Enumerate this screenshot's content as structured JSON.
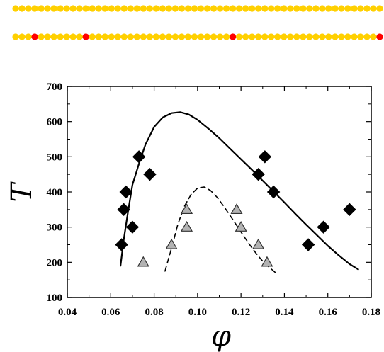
{
  "colors": {
    "bead": "#ffd000",
    "bead_defect": "#ff0000",
    "line": "#000000",
    "diamond": "#000000",
    "triangle_fill": "#b3b3b3",
    "triangle_stroke": "#333333"
  },
  "chain_strips": [
    {
      "beads": 58,
      "defects": []
    },
    {
      "beads": 58,
      "defects": [
        3,
        11,
        34,
        57
      ]
    }
  ],
  "chart_data": {
    "type": "scatter",
    "xlabel": "φ",
    "ylabel": "T",
    "xlim": [
      0.04,
      0.18
    ],
    "ylim": [
      100,
      700
    ],
    "xticks": [
      0.04,
      0.06,
      0.08,
      0.1,
      0.12,
      0.14,
      0.16,
      0.18
    ],
    "yticks": [
      100,
      200,
      300,
      400,
      500,
      600,
      700
    ],
    "xtick_labels": [
      "0.04",
      "0.06",
      "0.08",
      "0.10",
      "0.12",
      "0.14",
      "0.16",
      "0.18"
    ],
    "ytick_labels": [
      "100",
      "200",
      "300",
      "400",
      "500",
      "600",
      "700"
    ],
    "grid": false,
    "series": [
      {
        "marker": "diamond",
        "points": [
          [
            0.065,
            250
          ],
          [
            0.066,
            350
          ],
          [
            0.067,
            400
          ],
          [
            0.07,
            300
          ],
          [
            0.073,
            500
          ],
          [
            0.078,
            450
          ],
          [
            0.128,
            450
          ],
          [
            0.131,
            500
          ],
          [
            0.135,
            400
          ],
          [
            0.151,
            250
          ],
          [
            0.158,
            300
          ],
          [
            0.17,
            350
          ]
        ]
      },
      {
        "marker": "triangle",
        "points": [
          [
            0.075,
            200
          ],
          [
            0.088,
            250
          ],
          [
            0.095,
            350
          ],
          [
            0.095,
            300
          ],
          [
            0.118,
            350
          ],
          [
            0.12,
            300
          ],
          [
            0.128,
            250
          ],
          [
            0.132,
            200
          ]
        ]
      },
      {
        "style": "solid",
        "points": [
          [
            0.0645,
            190
          ],
          [
            0.066,
            265
          ],
          [
            0.068,
            345
          ],
          [
            0.07,
            420
          ],
          [
            0.073,
            480
          ],
          [
            0.076,
            535
          ],
          [
            0.08,
            585
          ],
          [
            0.084,
            612
          ],
          [
            0.088,
            624
          ],
          [
            0.092,
            627
          ],
          [
            0.096,
            620
          ],
          [
            0.1,
            605
          ],
          [
            0.105,
            580
          ],
          [
            0.11,
            553
          ],
          [
            0.115,
            523
          ],
          [
            0.12,
            493
          ],
          [
            0.125,
            463
          ],
          [
            0.13,
            432
          ],
          [
            0.135,
            401
          ],
          [
            0.14,
            370
          ],
          [
            0.145,
            338
          ],
          [
            0.15,
            307
          ],
          [
            0.155,
            277
          ],
          [
            0.16,
            247
          ],
          [
            0.165,
            220
          ],
          [
            0.17,
            195
          ],
          [
            0.174,
            180
          ]
        ]
      },
      {
        "style": "dashed",
        "points": [
          [
            0.085,
            175
          ],
          [
            0.088,
            240
          ],
          [
            0.091,
            310
          ],
          [
            0.094,
            360
          ],
          [
            0.097,
            393
          ],
          [
            0.1,
            411
          ],
          [
            0.103,
            414
          ],
          [
            0.106,
            404
          ],
          [
            0.109,
            385
          ],
          [
            0.112,
            360
          ],
          [
            0.115,
            333
          ],
          [
            0.118,
            305
          ],
          [
            0.121,
            277
          ],
          [
            0.124,
            250
          ],
          [
            0.127,
            225
          ],
          [
            0.13,
            203
          ],
          [
            0.133,
            186
          ],
          [
            0.136,
            170
          ]
        ]
      }
    ]
  }
}
